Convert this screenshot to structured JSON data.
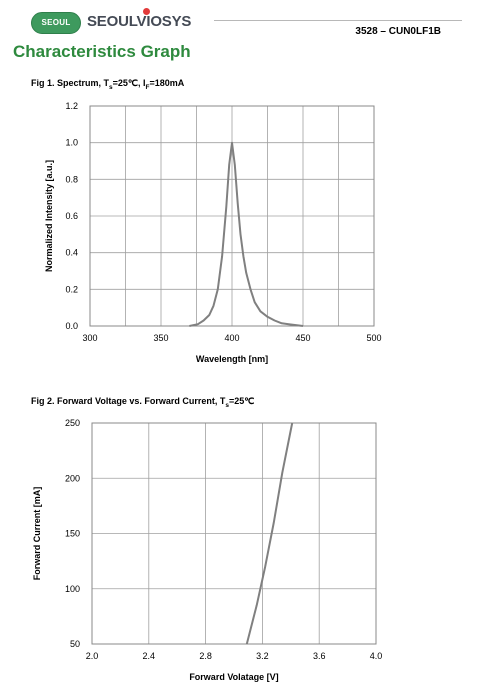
{
  "header": {
    "logo_pill": "SEOUL",
    "logo_word": "SEOULVIOSYS",
    "doc_number": "3528 – CUN0LF1B"
  },
  "page_title": "Characteristics Graph",
  "colors": {
    "title_green": "#2e8a3e",
    "logo_green": "#3e9a5e",
    "curve": "#808080",
    "grid": "#a0a0a0"
  },
  "chart_data": [
    {
      "type": "line",
      "title": "Fig 1. Spectrum, Ts=25℃, IF=180mA",
      "xlabel": "Wavelength [nm]",
      "ylabel": "Normalized Intensity [a.u.]",
      "xlim": [
        300,
        500
      ],
      "ylim": [
        0.0,
        1.2
      ],
      "x_ticks": [
        "300",
        "350",
        "400",
        "450",
        "500"
      ],
      "y_ticks": [
        "0.0",
        "0.2",
        "0.4",
        "0.6",
        "0.8",
        "1.0",
        "1.2"
      ],
      "grid": true,
      "series": [
        {
          "x": [
            370,
            376,
            380,
            384,
            387,
            390,
            393,
            396,
            398,
            400,
            402,
            404,
            406,
            408,
            410,
            413,
            416,
            420,
            425,
            430,
            435,
            440,
            445,
            450
          ],
          "y": [
            0.0,
            0.01,
            0.03,
            0.06,
            0.11,
            0.2,
            0.38,
            0.65,
            0.88,
            1.0,
            0.88,
            0.67,
            0.5,
            0.38,
            0.29,
            0.2,
            0.13,
            0.08,
            0.05,
            0.03,
            0.015,
            0.01,
            0.005,
            0.0
          ]
        }
      ]
    },
    {
      "type": "line",
      "title": "Fig 2. Forward Voltage vs. Forward Current, Ts=25℃",
      "xlabel": "Forward  Volatage [V]",
      "ylabel": "Forward Current [mA]",
      "xlim": [
        2.0,
        4.0
      ],
      "ylim": [
        50,
        250
      ],
      "x_ticks": [
        "2.0",
        "2.4",
        "2.8",
        "3.2",
        "3.6",
        "4.0"
      ],
      "y_ticks": [
        "50",
        "100",
        "150",
        "200",
        "250"
      ],
      "grid": true,
      "series": [
        {
          "x": [
            3.09,
            3.16,
            3.22,
            3.28,
            3.34,
            3.41
          ],
          "y": [
            50,
            85,
            120,
            160,
            205,
            250
          ]
        }
      ]
    }
  ]
}
